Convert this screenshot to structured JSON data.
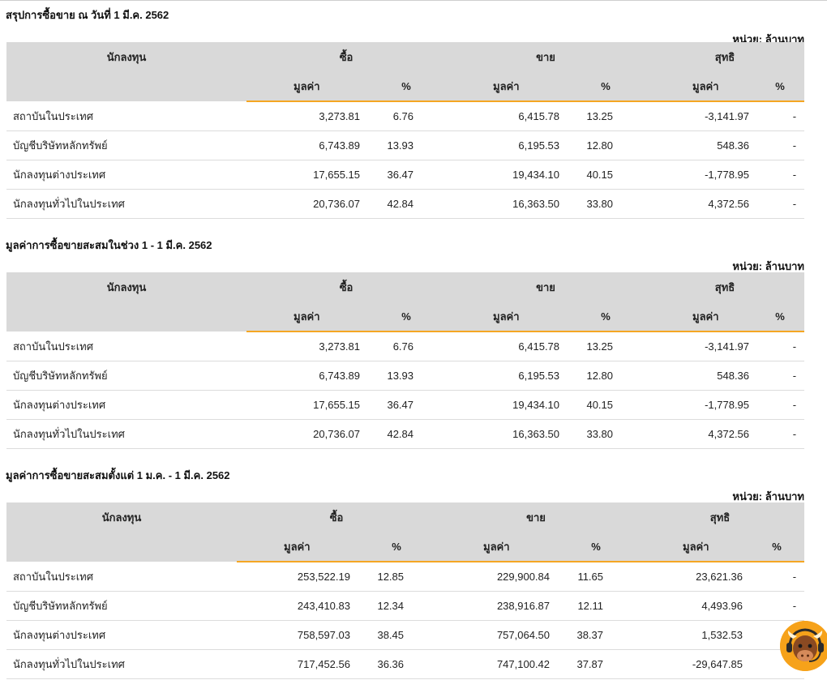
{
  "unit_label": "หน่วย: ล้านบาท",
  "headers": {
    "investor": "นักลงทุน",
    "buy": "ซื้อ",
    "sell": "ขาย",
    "net": "สุทธิ",
    "value": "มูลค่า",
    "percent": "%"
  },
  "tables": [
    {
      "title": "สรุปการซื้อขาย ณ วันที่ 1 มี.ค. 2562",
      "rows": [
        {
          "name": "สถาบันในประเทศ",
          "buy_value": "3,273.81",
          "buy_pct": "6.76",
          "sell_value": "6,415.78",
          "sell_pct": "13.25",
          "net_value": "-3,141.97",
          "net_pct": "-",
          "net_sign": "neg"
        },
        {
          "name": "บัญชีบริษัทหลักทรัพย์",
          "buy_value": "6,743.89",
          "buy_pct": "13.93",
          "sell_value": "6,195.53",
          "sell_pct": "12.80",
          "net_value": "548.36",
          "net_pct": "-",
          "net_sign": "pos"
        },
        {
          "name": "นักลงทุนต่างประเทศ",
          "buy_value": "17,655.15",
          "buy_pct": "36.47",
          "sell_value": "19,434.10",
          "sell_pct": "40.15",
          "net_value": "-1,778.95",
          "net_pct": "-",
          "net_sign": "neg"
        },
        {
          "name": "นักลงทุนทั่วไปในประเทศ",
          "buy_value": "20,736.07",
          "buy_pct": "42.84",
          "sell_value": "16,363.50",
          "sell_pct": "33.80",
          "net_value": "4,372.56",
          "net_pct": "-",
          "net_sign": "pos"
        }
      ]
    },
    {
      "title": "มูลค่าการซื้อขายสะสมในช่วง 1 - 1 มี.ค. 2562",
      "rows": [
        {
          "name": "สถาบันในประเทศ",
          "buy_value": "3,273.81",
          "buy_pct": "6.76",
          "sell_value": "6,415.78",
          "sell_pct": "13.25",
          "net_value": "-3,141.97",
          "net_pct": "-",
          "net_sign": "neg"
        },
        {
          "name": "บัญชีบริษัทหลักทรัพย์",
          "buy_value": "6,743.89",
          "buy_pct": "13.93",
          "sell_value": "6,195.53",
          "sell_pct": "12.80",
          "net_value": "548.36",
          "net_pct": "-",
          "net_sign": "pos"
        },
        {
          "name": "นักลงทุนต่างประเทศ",
          "buy_value": "17,655.15",
          "buy_pct": "36.47",
          "sell_value": "19,434.10",
          "sell_pct": "40.15",
          "net_value": "-1,778.95",
          "net_pct": "-",
          "net_sign": "neg"
        },
        {
          "name": "นักลงทุนทั่วไปในประเทศ",
          "buy_value": "20,736.07",
          "buy_pct": "42.84",
          "sell_value": "16,363.50",
          "sell_pct": "33.80",
          "net_value": "4,372.56",
          "net_pct": "-",
          "net_sign": "pos"
        }
      ]
    },
    {
      "title": "มูลค่าการซื้อขายสะสมตั้งแต่ 1 ม.ค. - 1 มี.ค. 2562",
      "rows": [
        {
          "name": "สถาบันในประเทศ",
          "buy_value": "253,522.19",
          "buy_pct": "12.85",
          "sell_value": "229,900.84",
          "sell_pct": "11.65",
          "net_value": "23,621.36",
          "net_pct": "-",
          "net_sign": "pos"
        },
        {
          "name": "บัญชีบริษัทหลักทรัพย์",
          "buy_value": "243,410.83",
          "buy_pct": "12.34",
          "sell_value": "238,916.87",
          "sell_pct": "12.11",
          "net_value": "4,493.96",
          "net_pct": "-",
          "net_sign": "pos"
        },
        {
          "name": "นักลงทุนต่างประเทศ",
          "buy_value": "758,597.03",
          "buy_pct": "38.45",
          "sell_value": "757,064.50",
          "sell_pct": "38.37",
          "net_value": "1,532.53",
          "net_pct": "-",
          "net_sign": "pos"
        },
        {
          "name": "นักลงทุนทั่วไปในประเทศ",
          "buy_value": "717,452.56",
          "buy_pct": "36.36",
          "sell_value": "747,100.42",
          "sell_pct": "37.87",
          "net_value": "-29,647.85",
          "net_pct": "-",
          "net_sign": "neg"
        }
      ]
    }
  ],
  "colors": {
    "negative": "#d0021b",
    "positive": "#2e8b20",
    "accent": "#f5a623",
    "header_bg": "#d9d9d9"
  },
  "chat_widget": {
    "icon": "bull-mascot-headset-icon"
  }
}
